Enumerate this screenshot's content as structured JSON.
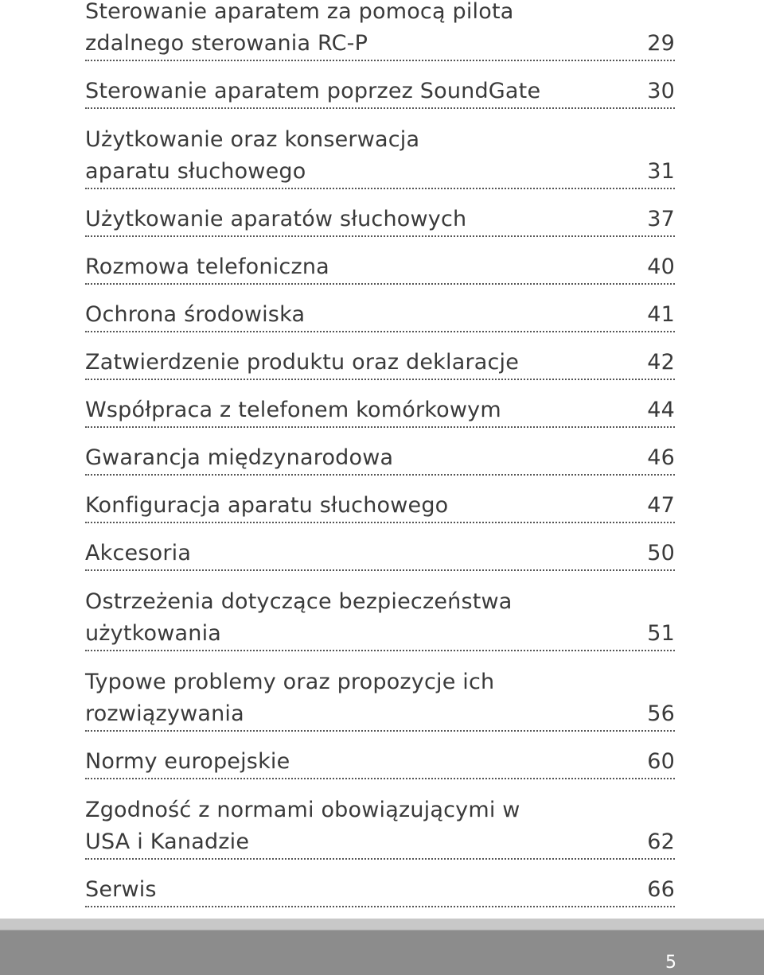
{
  "toc": {
    "entries": [
      {
        "lines": [
          "Sterowanie aparatem za pomocą pilota",
          "zdalnego sterowania RC-P"
        ],
        "page": 29
      },
      {
        "lines": [
          "Sterowanie aparatem poprzez SoundGate"
        ],
        "page": 30
      },
      {
        "lines": [
          "Użytkowanie oraz konserwacja",
          "aparatu słuchowego"
        ],
        "page": 31
      },
      {
        "lines": [
          "Użytkowanie aparatów słuchowych"
        ],
        "page": 37
      },
      {
        "lines": [
          "Rozmowa telefoniczna"
        ],
        "page": 40
      },
      {
        "lines": [
          "Ochrona środowiska"
        ],
        "page": 41
      },
      {
        "lines": [
          "Zatwierdzenie produktu oraz deklaracje"
        ],
        "page": 42
      },
      {
        "lines": [
          "Współpraca z telefonem komórkowym"
        ],
        "page": 44
      },
      {
        "lines": [
          "Gwarancja międzynarodowa"
        ],
        "page": 46
      },
      {
        "lines": [
          "Konfiguracja aparatu słuchowego"
        ],
        "page": 47
      },
      {
        "lines": [
          "Akcesoria"
        ],
        "page": 50
      },
      {
        "lines": [
          "Ostrzeżenia dotyczące bezpieczeństwa",
          "użytkowania"
        ],
        "page": 51
      },
      {
        "lines": [
          "Typowe problemy oraz propozycje ich",
          "rozwiązywania"
        ],
        "page": 56
      },
      {
        "lines": [
          "Normy europejskie"
        ],
        "page": 60
      },
      {
        "lines": [
          "Zgodność z normami obowiązującymi w",
          "USA i Kanadzie"
        ],
        "page": 62
      },
      {
        "lines": [
          "Serwis"
        ],
        "page": 66
      }
    ]
  },
  "footer": {
    "page_number": 5
  }
}
